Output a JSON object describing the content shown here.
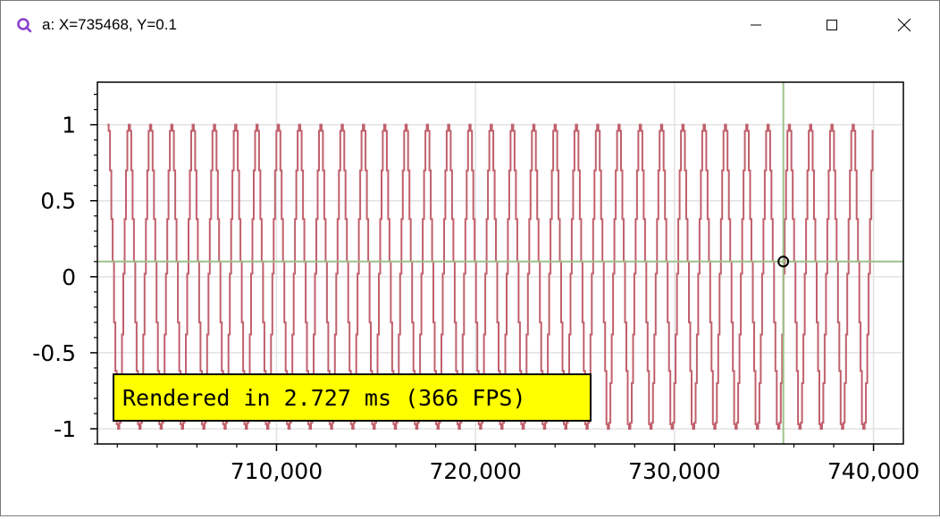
{
  "window": {
    "title": "a: X=735468, Y=0.1",
    "icon": "scottplot-logo-icon",
    "controls": [
      "minimize-icon",
      "maximize-icon",
      "close-icon"
    ]
  },
  "chart_data": {
    "type": "line",
    "style": "step",
    "series": [
      {
        "color": "#c0606c",
        "x_start": 701500,
        "x_end": 740000,
        "period": 1070,
        "steps_per_period": 8,
        "amplitude": 1.0,
        "description_values": [
          1,
          0.96,
          0.7,
          0.38,
          0.1,
          -0.3,
          -0.62,
          -0.97,
          -1,
          -0.96,
          -0.7,
          -0.38,
          0.02,
          0.38,
          0.7,
          0.96
        ]
      }
    ],
    "xlim": [
      701000,
      741500
    ],
    "ylim": [
      -1.1,
      1.28
    ],
    "xticks": [
      {
        "value": 710000,
        "label": "710,000"
      },
      {
        "value": 720000,
        "label": "720,000"
      },
      {
        "value": 730000,
        "label": "730,000"
      },
      {
        "value": 740000,
        "label": "740,000"
      }
    ],
    "yticks": [
      {
        "value": 1,
        "label": "1"
      },
      {
        "value": 0.5,
        "label": "0.5"
      },
      {
        "value": 0,
        "label": "0"
      },
      {
        "value": -0.5,
        "label": "-0.5"
      },
      {
        "value": -1,
        "label": "-1"
      }
    ],
    "grid": true,
    "crosshair": {
      "x": 735468,
      "y": 0.1,
      "color": "#9dc08b"
    },
    "annotation": {
      "text": "Rendered in 2.727 ms (366 FPS)",
      "background": "#ffff00",
      "border": "#000000",
      "position": "bottom-left"
    }
  }
}
